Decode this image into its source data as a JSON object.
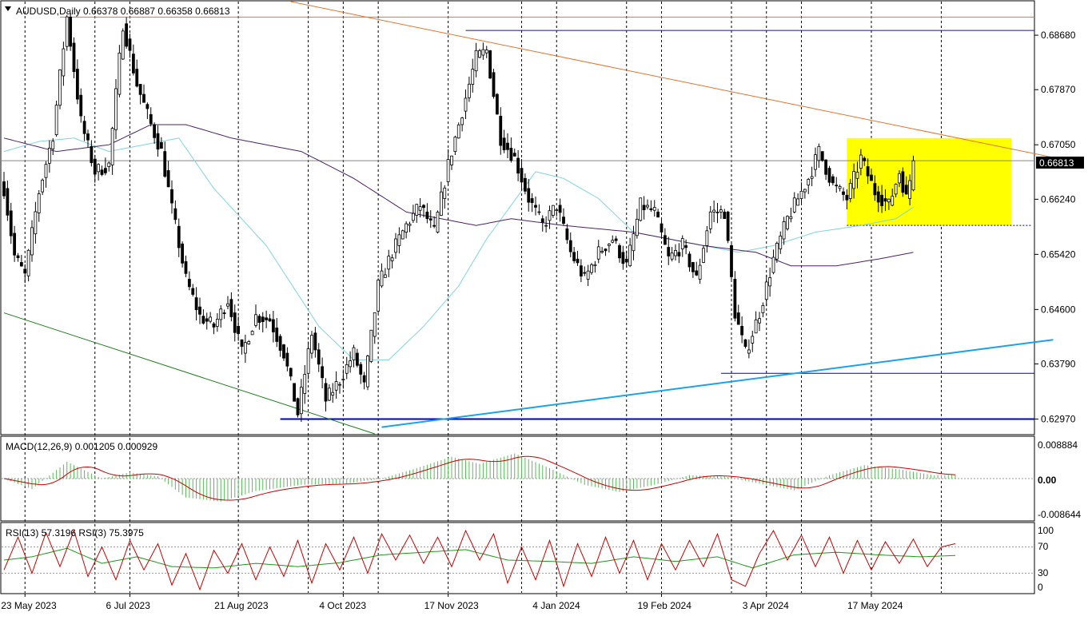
{
  "header": {
    "symbol_info": "AUDUSD,Daily  0.66378 0.66887 0.66358 0.66813",
    "dropdown_icon": "triangle-down-icon"
  },
  "price_panel": {
    "current_price_label": "0.66813",
    "price_tick_labels": [
      "0.68680",
      "0.67870",
      "0.67050",
      "0.66240",
      "0.65420",
      "0.64600",
      "0.63790",
      "0.62970"
    ],
    "price_tick_values": [
      0.6868,
      0.6787,
      0.6705,
      0.6624,
      0.6542,
      0.646,
      0.6379,
      0.6297
    ]
  },
  "macd_panel": {
    "label": "MACD(12,26,9) 0.001205 0.000929",
    "tick_labels": [
      "0.008884",
      "0.00",
      "-0.008644"
    ]
  },
  "rsi_panel": {
    "label": "RSI(13) 57.3196  RSI(3) 75.3975",
    "tick_labels": [
      "100",
      "70",
      "30",
      "0"
    ]
  },
  "time_axis": {
    "labels": [
      "23 May 2023",
      "6 Jul 2023",
      "21 Aug 2023",
      "4 Oct 2023",
      "17 Nov 2023",
      "4 Jan 2024",
      "19 Feb 2024",
      "3 Apr 2024",
      "17 May 2024"
    ]
  },
  "colors": {
    "candle_up": "#ffffff",
    "candle_down": "#000000",
    "ma_fast": "#7fd4dc",
    "ma_slow": "#4b2266",
    "trend_up": "#1aa3e8",
    "trend_down_orange": "#e3742b",
    "support_green": "#1e7d1e",
    "level_line": "#0000cc",
    "range_box": "#ffff00",
    "macd_hist": "#5cb85c",
    "macd_signal": "#cc0000",
    "rsi_slow": "#1a9a1a",
    "rsi_fast": "#cc0000"
  },
  "chart_data": {
    "type": "candlestick",
    "symbol": "AUDUSD",
    "timeframe": "Daily",
    "last_bar": {
      "open": 0.66378,
      "high": 0.66887,
      "low": 0.66358,
      "close": 0.66813
    },
    "x_labels": [
      "23 May 2023",
      "6 Jul 2023",
      "21 Aug 2023",
      "4 Oct 2023",
      "17 Nov 2023",
      "4 Jan 2024",
      "19 Feb 2024",
      "3 Apr 2024",
      "17 May 2024"
    ],
    "ylim": [
      0.6275,
      0.6918
    ],
    "close_anchors": [
      {
        "i": 0,
        "v": 0.664
      },
      {
        "i": 3,
        "v": 0.654
      },
      {
        "i": 6,
        "v": 0.651
      },
      {
        "i": 10,
        "v": 0.6635
      },
      {
        "i": 14,
        "v": 0.672
      },
      {
        "i": 18,
        "v": 0.6895
      },
      {
        "i": 22,
        "v": 0.674
      },
      {
        "i": 26,
        "v": 0.6665
      },
      {
        "i": 30,
        "v": 0.6675
      },
      {
        "i": 34,
        "v": 0.6885
      },
      {
        "i": 38,
        "v": 0.6795
      },
      {
        "i": 42,
        "v": 0.6735
      },
      {
        "i": 45,
        "v": 0.6695
      },
      {
        "i": 48,
        "v": 0.661
      },
      {
        "i": 52,
        "v": 0.6505
      },
      {
        "i": 56,
        "v": 0.645
      },
      {
        "i": 60,
        "v": 0.6435
      },
      {
        "i": 64,
        "v": 0.6475
      },
      {
        "i": 68,
        "v": 0.6395
      },
      {
        "i": 72,
        "v": 0.645
      },
      {
        "i": 76,
        "v": 0.6445
      },
      {
        "i": 80,
        "v": 0.6395
      },
      {
        "i": 84,
        "v": 0.6305
      },
      {
        "i": 88,
        "v": 0.6425
      },
      {
        "i": 92,
        "v": 0.6325
      },
      {
        "i": 96,
        "v": 0.6355
      },
      {
        "i": 100,
        "v": 0.6395
      },
      {
        "i": 103,
        "v": 0.6345
      },
      {
        "i": 107,
        "v": 0.6495
      },
      {
        "i": 111,
        "v": 0.6545
      },
      {
        "i": 115,
        "v": 0.6585
      },
      {
        "i": 119,
        "v": 0.6615
      },
      {
        "i": 123,
        "v": 0.6575
      },
      {
        "i": 127,
        "v": 0.6675
      },
      {
        "i": 131,
        "v": 0.6755
      },
      {
        "i": 135,
        "v": 0.6835
      },
      {
        "i": 138,
        "v": 0.6845
      },
      {
        "i": 142,
        "v": 0.6715
      },
      {
        "i": 146,
        "v": 0.6685
      },
      {
        "i": 150,
        "v": 0.6625
      },
      {
        "i": 154,
        "v": 0.6585
      },
      {
        "i": 158,
        "v": 0.6615
      },
      {
        "i": 162,
        "v": 0.6545
      },
      {
        "i": 166,
        "v": 0.6505
      },
      {
        "i": 170,
        "v": 0.6545
      },
      {
        "i": 174,
        "v": 0.6565
      },
      {
        "i": 178,
        "v": 0.6525
      },
      {
        "i": 182,
        "v": 0.6615
      },
      {
        "i": 186,
        "v": 0.6605
      },
      {
        "i": 190,
        "v": 0.6535
      },
      {
        "i": 194,
        "v": 0.6555
      },
      {
        "i": 198,
        "v": 0.6505
      },
      {
        "i": 202,
        "v": 0.6605
      },
      {
        "i": 206,
        "v": 0.6605
      },
      {
        "i": 209,
        "v": 0.6455
      },
      {
        "i": 212,
        "v": 0.6395
      },
      {
        "i": 216,
        "v": 0.6455
      },
      {
        "i": 220,
        "v": 0.6535
      },
      {
        "i": 224,
        "v": 0.6595
      },
      {
        "i": 227,
        "v": 0.6625
      },
      {
        "i": 230,
        "v": 0.6655
      },
      {
        "i": 233,
        "v": 0.6695
      },
      {
        "i": 237,
        "v": 0.6645
      },
      {
        "i": 241,
        "v": 0.6625
      },
      {
        "i": 245,
        "v": 0.6685
      },
      {
        "i": 249,
        "v": 0.6635
      },
      {
        "i": 253,
        "v": 0.6615
      },
      {
        "i": 256,
        "v": 0.6665
      },
      {
        "i": 258,
        "v": 0.6625
      },
      {
        "i": 260,
        "v": 0.6681
      }
    ],
    "ma_fast_anchors": [
      {
        "i": 0,
        "v": 0.6695
      },
      {
        "i": 10,
        "v": 0.671
      },
      {
        "i": 20,
        "v": 0.6715
      },
      {
        "i": 30,
        "v": 0.6695
      },
      {
        "i": 40,
        "v": 0.6705
      },
      {
        "i": 50,
        "v": 0.6715
      },
      {
        "i": 60,
        "v": 0.664
      },
      {
        "i": 75,
        "v": 0.6555
      },
      {
        "i": 90,
        "v": 0.6435
      },
      {
        "i": 100,
        "v": 0.6385
      },
      {
        "i": 110,
        "v": 0.6385
      },
      {
        "i": 120,
        "v": 0.6435
      },
      {
        "i": 130,
        "v": 0.6495
      },
      {
        "i": 138,
        "v": 0.6565
      },
      {
        "i": 145,
        "v": 0.6615
      },
      {
        "i": 152,
        "v": 0.6665
      },
      {
        "i": 160,
        "v": 0.6655
      },
      {
        "i": 170,
        "v": 0.6625
      },
      {
        "i": 180,
        "v": 0.6575
      },
      {
        "i": 190,
        "v": 0.6565
      },
      {
        "i": 200,
        "v": 0.6555
      },
      {
        "i": 210,
        "v": 0.6545
      },
      {
        "i": 220,
        "v": 0.6555
      },
      {
        "i": 232,
        "v": 0.6575
      },
      {
        "i": 245,
        "v": 0.6585
      },
      {
        "i": 255,
        "v": 0.6595
      },
      {
        "i": 260,
        "v": 0.6612
      }
    ],
    "ma_slow_anchors": [
      {
        "i": 0,
        "v": 0.6715
      },
      {
        "i": 15,
        "v": 0.6695
      },
      {
        "i": 30,
        "v": 0.6705
      },
      {
        "i": 42,
        "v": 0.6735
      },
      {
        "i": 52,
        "v": 0.6735
      },
      {
        "i": 65,
        "v": 0.6715
      },
      {
        "i": 85,
        "v": 0.6695
      },
      {
        "i": 100,
        "v": 0.6655
      },
      {
        "i": 115,
        "v": 0.6605
      },
      {
        "i": 125,
        "v": 0.6595
      },
      {
        "i": 135,
        "v": 0.6585
      },
      {
        "i": 145,
        "v": 0.6595
      },
      {
        "i": 160,
        "v": 0.6585
      },
      {
        "i": 180,
        "v": 0.6575
      },
      {
        "i": 200,
        "v": 0.6555
      },
      {
        "i": 215,
        "v": 0.6545
      },
      {
        "i": 225,
        "v": 0.6525
      },
      {
        "i": 238,
        "v": 0.6525
      },
      {
        "i": 250,
        "v": 0.6535
      },
      {
        "i": 260,
        "v": 0.6545
      }
    ],
    "levels": {
      "top_resistance": 0.6895,
      "swing_high": 0.6875,
      "current": 0.66813,
      "range_high": 0.6715,
      "range_low": 0.6585,
      "support_mid": 0.6365,
      "support_low": 0.6297
    },
    "trendlines": {
      "descending_resistance": {
        "from": {
          "i": 82,
          "v": 0.6918
        },
        "to": {
          "i": 301,
          "v": 0.6685
        }
      },
      "ascending_support": {
        "from": {
          "i": 108,
          "v": 0.6285
        },
        "to": {
          "i": 300,
          "v": 0.6415
        }
      },
      "descending_support": {
        "from": {
          "i": 0,
          "v": 0.6455
        },
        "to": {
          "i": 106,
          "v": 0.6275
        }
      }
    },
    "range_box": {
      "from_i": 241,
      "to_i": 288,
      "high": 0.6715,
      "low": 0.6585
    },
    "macd_anchors": [
      {
        "i": 0,
        "v": 0.0
      },
      {
        "i": 8,
        "v": -0.0025
      },
      {
        "i": 18,
        "v": 0.004
      },
      {
        "i": 28,
        "v": 0.0
      },
      {
        "i": 36,
        "v": 0.0015
      },
      {
        "i": 44,
        "v": 0.0005
      },
      {
        "i": 52,
        "v": -0.0045
      },
      {
        "i": 62,
        "v": -0.0055
      },
      {
        "i": 72,
        "v": -0.003
      },
      {
        "i": 85,
        "v": -0.0015
      },
      {
        "i": 98,
        "v": -0.0012
      },
      {
        "i": 108,
        "v": 0.0
      },
      {
        "i": 118,
        "v": 0.0025
      },
      {
        "i": 128,
        "v": 0.0052
      },
      {
        "i": 136,
        "v": 0.0035
      },
      {
        "i": 146,
        "v": 0.006
      },
      {
        "i": 156,
        "v": 0.0025
      },
      {
        "i": 166,
        "v": -0.0015
      },
      {
        "i": 176,
        "v": -0.0032
      },
      {
        "i": 186,
        "v": -0.0015
      },
      {
        "i": 196,
        "v": 0.0008
      },
      {
        "i": 206,
        "v": 0.0005
      },
      {
        "i": 216,
        "v": -0.0012
      },
      {
        "i": 226,
        "v": -0.0028
      },
      {
        "i": 236,
        "v": 0.0008
      },
      {
        "i": 246,
        "v": 0.0032
      },
      {
        "i": 256,
        "v": 0.0022
      },
      {
        "i": 266,
        "v": 0.0008
      },
      {
        "i": 272,
        "v": 0.0009
      }
    ],
    "macd_ylim": [
      -0.0099,
      0.0099
    ],
    "rsi_slow_anchors": [
      {
        "i": 0,
        "v": 50
      },
      {
        "i": 8,
        "v": 55
      },
      {
        "i": 18,
        "v": 68
      },
      {
        "i": 28,
        "v": 45
      },
      {
        "i": 38,
        "v": 55
      },
      {
        "i": 48,
        "v": 40
      },
      {
        "i": 60,
        "v": 38
      },
      {
        "i": 72,
        "v": 45
      },
      {
        "i": 84,
        "v": 40
      },
      {
        "i": 96,
        "v": 46
      },
      {
        "i": 108,
        "v": 58
      },
      {
        "i": 120,
        "v": 62
      },
      {
        "i": 132,
        "v": 66
      },
      {
        "i": 144,
        "v": 50
      },
      {
        "i": 156,
        "v": 48
      },
      {
        "i": 168,
        "v": 45
      },
      {
        "i": 180,
        "v": 55
      },
      {
        "i": 192,
        "v": 48
      },
      {
        "i": 204,
        "v": 55
      },
      {
        "i": 214,
        "v": 38
      },
      {
        "i": 226,
        "v": 58
      },
      {
        "i": 238,
        "v": 62
      },
      {
        "i": 250,
        "v": 58
      },
      {
        "i": 262,
        "v": 55
      },
      {
        "i": 272,
        "v": 57
      }
    ],
    "rsi_fast_anchors": [
      {
        "i": 0,
        "v": 35
      },
      {
        "i": 4,
        "v": 85
      },
      {
        "i": 8,
        "v": 30
      },
      {
        "i": 12,
        "v": 92
      },
      {
        "i": 16,
        "v": 40
      },
      {
        "i": 20,
        "v": 95
      },
      {
        "i": 24,
        "v": 25
      },
      {
        "i": 28,
        "v": 70
      },
      {
        "i": 32,
        "v": 20
      },
      {
        "i": 36,
        "v": 80
      },
      {
        "i": 40,
        "v": 35
      },
      {
        "i": 44,
        "v": 75
      },
      {
        "i": 48,
        "v": 12
      },
      {
        "i": 52,
        "v": 60
      },
      {
        "i": 56,
        "v": 5
      },
      {
        "i": 60,
        "v": 65
      },
      {
        "i": 64,
        "v": 30
      },
      {
        "i": 68,
        "v": 75
      },
      {
        "i": 72,
        "v": 20
      },
      {
        "i": 76,
        "v": 70
      },
      {
        "i": 80,
        "v": 25
      },
      {
        "i": 84,
        "v": 80
      },
      {
        "i": 88,
        "v": 15
      },
      {
        "i": 92,
        "v": 75
      },
      {
        "i": 96,
        "v": 35
      },
      {
        "i": 100,
        "v": 85
      },
      {
        "i": 104,
        "v": 30
      },
      {
        "i": 108,
        "v": 90
      },
      {
        "i": 112,
        "v": 50
      },
      {
        "i": 116,
        "v": 88
      },
      {
        "i": 120,
        "v": 45
      },
      {
        "i": 124,
        "v": 85
      },
      {
        "i": 128,
        "v": 40
      },
      {
        "i": 132,
        "v": 95
      },
      {
        "i": 136,
        "v": 50
      },
      {
        "i": 140,
        "v": 90
      },
      {
        "i": 144,
        "v": 15
      },
      {
        "i": 148,
        "v": 70
      },
      {
        "i": 152,
        "v": 20
      },
      {
        "i": 156,
        "v": 80
      },
      {
        "i": 160,
        "v": 10
      },
      {
        "i": 164,
        "v": 75
      },
      {
        "i": 168,
        "v": 25
      },
      {
        "i": 172,
        "v": 85
      },
      {
        "i": 176,
        "v": 30
      },
      {
        "i": 180,
        "v": 80
      },
      {
        "i": 184,
        "v": 20
      },
      {
        "i": 188,
        "v": 75
      },
      {
        "i": 192,
        "v": 35
      },
      {
        "i": 196,
        "v": 80
      },
      {
        "i": 200,
        "v": 40
      },
      {
        "i": 204,
        "v": 90
      },
      {
        "i": 208,
        "v": 20
      },
      {
        "i": 212,
        "v": 10
      },
      {
        "i": 216,
        "v": 60
      },
      {
        "i": 220,
        "v": 95
      },
      {
        "i": 224,
        "v": 50
      },
      {
        "i": 228,
        "v": 88
      },
      {
        "i": 232,
        "v": 40
      },
      {
        "i": 236,
        "v": 85
      },
      {
        "i": 240,
        "v": 30
      },
      {
        "i": 244,
        "v": 80
      },
      {
        "i": 248,
        "v": 35
      },
      {
        "i": 252,
        "v": 78
      },
      {
        "i": 256,
        "v": 45
      },
      {
        "i": 260,
        "v": 82
      },
      {
        "i": 264,
        "v": 40
      },
      {
        "i": 268,
        "v": 70
      },
      {
        "i": 272,
        "v": 75
      }
    ]
  }
}
